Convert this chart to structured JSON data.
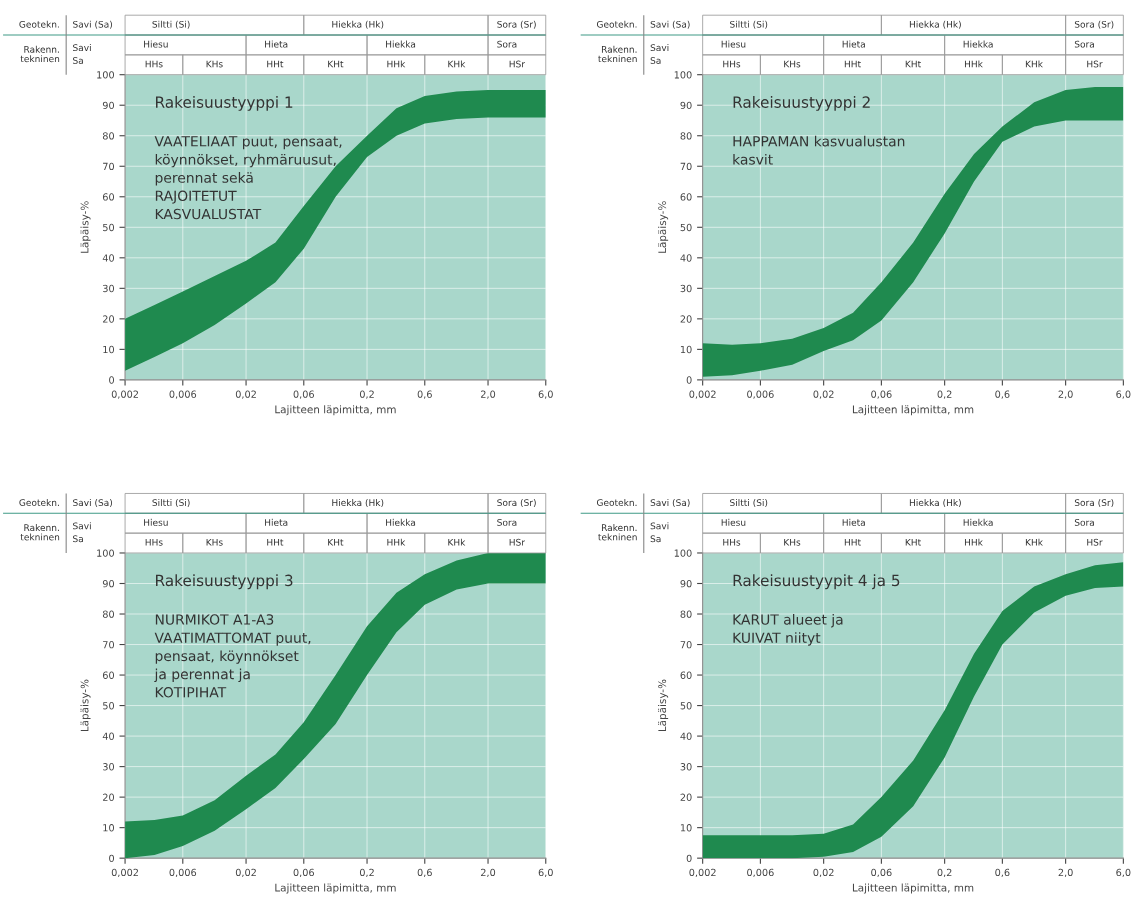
{
  "chart_data": [
    {
      "type": "area",
      "title": "Rakeisuustyyppi 1",
      "xlabel": "Lajitteen läpimitta, mm",
      "ylabel": "Läpäisy-%",
      "annotations": [
        "Geotekn.",
        "Savi (Sa)",
        "Siltti (Si)",
        "Hiekka (Hk)",
        "Sora (Sr)",
        "Rakenn.\ntekninen",
        "Savi\nSa",
        "Hiesu",
        "Hieta",
        "Hiekka",
        "Sora",
        "HHs",
        "KHs",
        "HHt",
        "KHt",
        "HHk",
        "KHk",
        "HSr",
        "VAATELIAAT puut, pensaat,\nköynnökset, ryhmäruusut,\nperennat sekä\nRAJOITETUT\nKASVUALUSTAT"
      ],
      "x": [
        0.002,
        0.0035,
        0.006,
        0.011,
        0.02,
        0.035,
        0.06,
        0.11,
        0.2,
        0.35,
        0.6,
        1.1,
        2.0,
        3.5,
        6.0
      ],
      "series": [
        {
          "color": "#1f8a4f",
          "values": [
            null,
            null,
            null,
            null,
            null,
            null,
            null,
            null,
            null,
            null,
            null,
            null,
            null,
            null,
            null
          ],
          "upper": [
            20,
            24.5,
            29,
            34,
            39,
            45,
            57,
            70,
            80,
            89,
            93,
            94.5,
            95,
            95,
            95
          ],
          "lower": [
            3,
            7.5,
            12,
            18,
            25,
            32,
            43,
            60,
            73,
            80,
            84,
            85.5,
            86,
            86,
            86
          ]
        }
      ],
      "xlim": [
        0.002,
        6.0
      ],
      "ylim": [
        0,
        100
      ],
      "log": "x",
      "grid": true,
      "xticks": [
        {
          "value": 0.002,
          "label": "0,002"
        },
        {
          "value": 0.006,
          "label": "0,006"
        },
        {
          "value": 0.02,
          "label": "0,02"
        },
        {
          "value": 0.06,
          "label": "0,06"
        },
        {
          "value": 0.2,
          "label": "0,2"
        },
        {
          "value": 0.6,
          "label": "0,6"
        },
        {
          "value": 2.0,
          "label": "2,0"
        },
        {
          "value": 6.0,
          "label": "6,0"
        }
      ],
      "yticks": [
        0,
        10,
        20,
        30,
        40,
        50,
        60,
        70,
        80,
        90,
        100
      ]
    },
    {
      "type": "area",
      "title": "Rakeisuustyyppi 2",
      "xlabel": "Lajitteen läpimitta, mm",
      "ylabel": "Läpäisy-%",
      "annotations": [
        "Geotekn.",
        "Savi (Sa)",
        "Siltti (Si)",
        "Hiekka (Hk)",
        "Sora (Sr)",
        "Rakenn.\ntekninen",
        "Savi\nSa",
        "Hiesu",
        "Hieta",
        "Hiekka",
        "Sora",
        "HHs",
        "KHs",
        "HHt",
        "KHt",
        "HHk",
        "KHk",
        "HSr",
        "HAPPAMAN kasvualustan\nkasvit"
      ],
      "x": [
        0.002,
        0.0035,
        0.006,
        0.011,
        0.02,
        0.035,
        0.06,
        0.11,
        0.2,
        0.35,
        0.6,
        1.1,
        2.0,
        3.5,
        6.0
      ],
      "series": [
        {
          "color": "#1f8a4f",
          "values": [
            null,
            null,
            null,
            null,
            null,
            null,
            null,
            null,
            null,
            null,
            null,
            null,
            null,
            null,
            null
          ],
          "upper": [
            12,
            11.5,
            12,
            13.5,
            17,
            22,
            32,
            45,
            61,
            74,
            83,
            91,
            95,
            96,
            96
          ],
          "lower": [
            1,
            1.5,
            3,
            5,
            9.5,
            13,
            19.5,
            32,
            48,
            65,
            78,
            83,
            85,
            85,
            85
          ]
        }
      ],
      "xlim": [
        0.002,
        6.0
      ],
      "ylim": [
        0,
        100
      ],
      "log": "x",
      "grid": true,
      "xticks": [
        {
          "value": 0.002,
          "label": "0,002"
        },
        {
          "value": 0.006,
          "label": "0,006"
        },
        {
          "value": 0.02,
          "label": "0,02"
        },
        {
          "value": 0.06,
          "label": "0,06"
        },
        {
          "value": 0.2,
          "label": "0,2"
        },
        {
          "value": 0.6,
          "label": "0,6"
        },
        {
          "value": 2.0,
          "label": "2,0"
        },
        {
          "value": 6.0,
          "label": "6,0"
        }
      ],
      "yticks": [
        0,
        10,
        20,
        30,
        40,
        50,
        60,
        70,
        80,
        90,
        100
      ]
    },
    {
      "type": "area",
      "title": "Rakeisuustyyppi 3",
      "xlabel": "Lajitteen läpimitta, mm",
      "ylabel": "Läpäisy-%",
      "annotations": [
        "Geotekn.",
        "Savi (Sa)",
        "Siltti (Si)",
        "Hiekka (Hk)",
        "Sora (Sr)",
        "Rakenn.\ntekninen",
        "Savi\nSa",
        "Hiesu",
        "Hieta",
        "Hiekka",
        "Sora",
        "HHs",
        "KHs",
        "HHt",
        "KHt",
        "HHk",
        "KHk",
        "HSr",
        "NURMIKOT A1-A3\nVAATIMATTOMAT puut,\npensaat, köynnökset\nja perennat ja\nKOTIPIHAT"
      ],
      "x": [
        0.002,
        0.0035,
        0.006,
        0.011,
        0.02,
        0.035,
        0.06,
        0.11,
        0.2,
        0.35,
        0.6,
        1.1,
        2.0,
        3.5,
        6.0
      ],
      "series": [
        {
          "color": "#1f8a4f",
          "values": [
            null,
            null,
            null,
            null,
            null,
            null,
            null,
            null,
            null,
            null,
            null,
            null,
            null,
            null,
            null
          ],
          "upper": [
            12,
            12.5,
            14,
            19,
            27,
            34,
            44.5,
            60,
            76,
            87,
            93,
            97.5,
            100,
            100,
            100
          ],
          "lower": [
            0,
            1,
            4,
            9,
            16,
            23,
            32.5,
            44,
            60,
            74,
            83,
            88,
            90,
            90,
            90
          ]
        }
      ],
      "xlim": [
        0.002,
        6.0
      ],
      "ylim": [
        0,
        100
      ],
      "log": "x",
      "grid": true,
      "xticks": [
        {
          "value": 0.002,
          "label": "0,002"
        },
        {
          "value": 0.006,
          "label": "0,006"
        },
        {
          "value": 0.02,
          "label": "0,02"
        },
        {
          "value": 0.06,
          "label": "0,06"
        },
        {
          "value": 0.2,
          "label": "0,2"
        },
        {
          "value": 0.6,
          "label": "0,6"
        },
        {
          "value": 2.0,
          "label": "2,0"
        },
        {
          "value": 6.0,
          "label": "6,0"
        }
      ],
      "yticks": [
        0,
        10,
        20,
        30,
        40,
        50,
        60,
        70,
        80,
        90,
        100
      ]
    },
    {
      "type": "area",
      "title": "Rakeisuustyypit 4 ja 5",
      "xlabel": "Lajitteen läpimitta, mm",
      "ylabel": "Läpäisy-%",
      "annotations": [
        "Geotekn.",
        "Savi (Sa)",
        "Siltti (Si)",
        "Hiekka (Hk)",
        "Sora (Sr)",
        "Rakenn.\ntekninen",
        "Savi\nSa",
        "Hiesu",
        "Hieta",
        "Hiekka",
        "Sora",
        "HHs",
        "KHs",
        "HHt",
        "KHt",
        "HHk",
        "KHk",
        "HSr",
        "KARUT alueet ja\nKUIVAT niityt"
      ],
      "x": [
        0.002,
        0.0035,
        0.006,
        0.011,
        0.02,
        0.035,
        0.06,
        0.11,
        0.2,
        0.35,
        0.6,
        1.1,
        2.0,
        3.5,
        6.0
      ],
      "series": [
        {
          "color": "#1f8a4f",
          "values": [
            null,
            null,
            null,
            null,
            null,
            null,
            null,
            null,
            null,
            null,
            null,
            null,
            null,
            null,
            null
          ],
          "upper": [
            7.5,
            7.5,
            7.5,
            7.5,
            8,
            11,
            20,
            32,
            48.5,
            67,
            81,
            89,
            93,
            96,
            97
          ],
          "lower": [
            0,
            0,
            0,
            0,
            0.5,
            2,
            7,
            17,
            33,
            53,
            70,
            80.5,
            86,
            88.5,
            89
          ]
        }
      ],
      "xlim": [
        0.002,
        6.0
      ],
      "ylim": [
        0,
        100
      ],
      "log": "x",
      "grid": true,
      "xticks": [
        {
          "value": 0.002,
          "label": "0,002"
        },
        {
          "value": 0.006,
          "label": "0,006"
        },
        {
          "value": 0.02,
          "label": "0,02"
        },
        {
          "value": 0.06,
          "label": "0,06"
        },
        {
          "value": 0.2,
          "label": "0,2"
        },
        {
          "value": 0.6,
          "label": "0,6"
        },
        {
          "value": 2.0,
          "label": "2,0"
        },
        {
          "value": 6.0,
          "label": "6,0"
        }
      ],
      "yticks": [
        0,
        10,
        20,
        30,
        40,
        50,
        60,
        70,
        80,
        90,
        100
      ]
    }
  ]
}
